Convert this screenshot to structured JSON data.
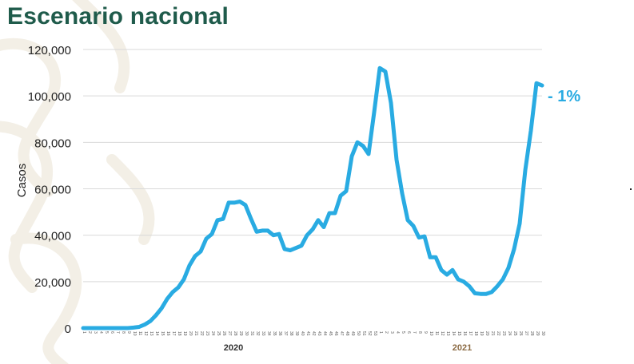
{
  "page": {
    "title": "Escenario nacional"
  },
  "chart_data": {
    "type": "line",
    "ylabel": "Casos",
    "ylim": [
      0,
      120000
    ],
    "yticks": [
      0,
      20000,
      40000,
      60000,
      80000,
      100000,
      120000
    ],
    "ytick_labels": [
      "0",
      "20,000",
      "40,000",
      "60,000",
      "80,000",
      "100,000",
      "120,000"
    ],
    "grid": true,
    "line_color": "#29abe2",
    "annotation": {
      "text": "- 1%",
      "color": "#29abe2"
    },
    "year_labels": [
      {
        "label": "2020",
        "color": "#333333"
      },
      {
        "label": "2021",
        "color": "#8b6a43"
      }
    ],
    "x": [
      "1",
      "2",
      "3",
      "4",
      "5",
      "6",
      "7",
      "8",
      "9",
      "10",
      "11",
      "12",
      "13",
      "14",
      "15",
      "16",
      "17",
      "18",
      "19",
      "20",
      "21",
      "22",
      "23",
      "24",
      "25",
      "26",
      "27",
      "28",
      "29",
      "30",
      "31",
      "32",
      "33",
      "34",
      "35",
      "36",
      "37",
      "38",
      "39",
      "40",
      "41",
      "42",
      "43",
      "44",
      "45",
      "46",
      "47",
      "48",
      "49",
      "50",
      "51",
      "52",
      "53",
      "1",
      "2",
      "3",
      "4",
      "5",
      "6",
      "7",
      "8",
      "9",
      "10",
      "11",
      "12",
      "13",
      "14",
      "15",
      "16",
      "17",
      "18",
      "19",
      "20",
      "21",
      "22",
      "23",
      "24",
      "25",
      "26",
      "27",
      "28",
      "29",
      "30"
    ],
    "series": [
      {
        "values": [
          0,
          0,
          0,
          0,
          0,
          0,
          0,
          0,
          0,
          200,
          500,
          1500,
          3000,
          5500,
          8500,
          12500,
          15500,
          17500,
          21000,
          27000,
          31000,
          33000,
          38500,
          40500,
          46500,
          47000,
          54000,
          54000,
          54500,
          53000,
          47000,
          41500,
          42000,
          42000,
          40000,
          40500,
          34000,
          33500,
          34500,
          35500,
          40000,
          42500,
          46500,
          43500,
          49500,
          49500,
          57000,
          59000,
          74000,
          80000,
          78500,
          75000,
          93000,
          112000,
          110500,
          97000,
          72500,
          58000,
          46500,
          44000,
          39000,
          39500,
          30500,
          30500,
          25000,
          23000,
          25000,
          21000,
          20000,
          18000,
          15000,
          14700,
          14700,
          15500,
          18000,
          21000,
          26000,
          34000,
          45000,
          68000,
          85000,
          105500,
          104500
        ]
      }
    ]
  }
}
